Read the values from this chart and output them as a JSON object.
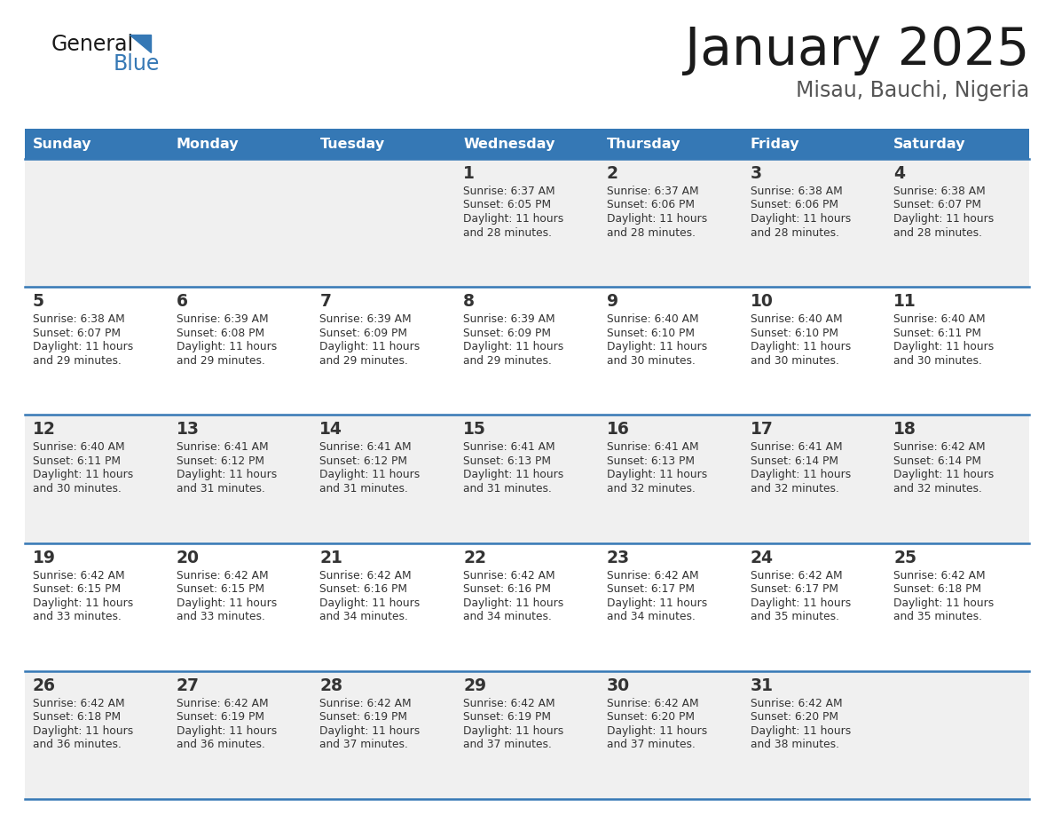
{
  "title": "January 2025",
  "subtitle": "Misau, Bauchi, Nigeria",
  "header_bg": "#3578b5",
  "header_text_color": "#ffffff",
  "cell_bg_odd": "#f0f0f0",
  "cell_bg_even": "#ffffff",
  "separator_color": "#3578b5",
  "text_color": "#333333",
  "days_of_week": [
    "Sunday",
    "Monday",
    "Tuesday",
    "Wednesday",
    "Thursday",
    "Friday",
    "Saturday"
  ],
  "calendar_data": [
    [
      {
        "day": "",
        "sunrise": "",
        "sunset": "",
        "daylight": ""
      },
      {
        "day": "",
        "sunrise": "",
        "sunset": "",
        "daylight": ""
      },
      {
        "day": "",
        "sunrise": "",
        "sunset": "",
        "daylight": ""
      },
      {
        "day": "1",
        "sunrise": "6:37 AM",
        "sunset": "6:05 PM",
        "daylight": "11 hours and 28 minutes."
      },
      {
        "day": "2",
        "sunrise": "6:37 AM",
        "sunset": "6:06 PM",
        "daylight": "11 hours and 28 minutes."
      },
      {
        "day": "3",
        "sunrise": "6:38 AM",
        "sunset": "6:06 PM",
        "daylight": "11 hours and 28 minutes."
      },
      {
        "day": "4",
        "sunrise": "6:38 AM",
        "sunset": "6:07 PM",
        "daylight": "11 hours and 28 minutes."
      }
    ],
    [
      {
        "day": "5",
        "sunrise": "6:38 AM",
        "sunset": "6:07 PM",
        "daylight": "11 hours and 29 minutes."
      },
      {
        "day": "6",
        "sunrise": "6:39 AM",
        "sunset": "6:08 PM",
        "daylight": "11 hours and 29 minutes."
      },
      {
        "day": "7",
        "sunrise": "6:39 AM",
        "sunset": "6:09 PM",
        "daylight": "11 hours and 29 minutes."
      },
      {
        "day": "8",
        "sunrise": "6:39 AM",
        "sunset": "6:09 PM",
        "daylight": "11 hours and 29 minutes."
      },
      {
        "day": "9",
        "sunrise": "6:40 AM",
        "sunset": "6:10 PM",
        "daylight": "11 hours and 30 minutes."
      },
      {
        "day": "10",
        "sunrise": "6:40 AM",
        "sunset": "6:10 PM",
        "daylight": "11 hours and 30 minutes."
      },
      {
        "day": "11",
        "sunrise": "6:40 AM",
        "sunset": "6:11 PM",
        "daylight": "11 hours and 30 minutes."
      }
    ],
    [
      {
        "day": "12",
        "sunrise": "6:40 AM",
        "sunset": "6:11 PM",
        "daylight": "11 hours and 30 minutes."
      },
      {
        "day": "13",
        "sunrise": "6:41 AM",
        "sunset": "6:12 PM",
        "daylight": "11 hours and 31 minutes."
      },
      {
        "day": "14",
        "sunrise": "6:41 AM",
        "sunset": "6:12 PM",
        "daylight": "11 hours and 31 minutes."
      },
      {
        "day": "15",
        "sunrise": "6:41 AM",
        "sunset": "6:13 PM",
        "daylight": "11 hours and 31 minutes."
      },
      {
        "day": "16",
        "sunrise": "6:41 AM",
        "sunset": "6:13 PM",
        "daylight": "11 hours and 32 minutes."
      },
      {
        "day": "17",
        "sunrise": "6:41 AM",
        "sunset": "6:14 PM",
        "daylight": "11 hours and 32 minutes."
      },
      {
        "day": "18",
        "sunrise": "6:42 AM",
        "sunset": "6:14 PM",
        "daylight": "11 hours and 32 minutes."
      }
    ],
    [
      {
        "day": "19",
        "sunrise": "6:42 AM",
        "sunset": "6:15 PM",
        "daylight": "11 hours and 33 minutes."
      },
      {
        "day": "20",
        "sunrise": "6:42 AM",
        "sunset": "6:15 PM",
        "daylight": "11 hours and 33 minutes."
      },
      {
        "day": "21",
        "sunrise": "6:42 AM",
        "sunset": "6:16 PM",
        "daylight": "11 hours and 34 minutes."
      },
      {
        "day": "22",
        "sunrise": "6:42 AM",
        "sunset": "6:16 PM",
        "daylight": "11 hours and 34 minutes."
      },
      {
        "day": "23",
        "sunrise": "6:42 AM",
        "sunset": "6:17 PM",
        "daylight": "11 hours and 34 minutes."
      },
      {
        "day": "24",
        "sunrise": "6:42 AM",
        "sunset": "6:17 PM",
        "daylight": "11 hours and 35 minutes."
      },
      {
        "day": "25",
        "sunrise": "6:42 AM",
        "sunset": "6:18 PM",
        "daylight": "11 hours and 35 minutes."
      }
    ],
    [
      {
        "day": "26",
        "sunrise": "6:42 AM",
        "sunset": "6:18 PM",
        "daylight": "11 hours and 36 minutes."
      },
      {
        "day": "27",
        "sunrise": "6:42 AM",
        "sunset": "6:19 PM",
        "daylight": "11 hours and 36 minutes."
      },
      {
        "day": "28",
        "sunrise": "6:42 AM",
        "sunset": "6:19 PM",
        "daylight": "11 hours and 37 minutes."
      },
      {
        "day": "29",
        "sunrise": "6:42 AM",
        "sunset": "6:19 PM",
        "daylight": "11 hours and 37 minutes."
      },
      {
        "day": "30",
        "sunrise": "6:42 AM",
        "sunset": "6:20 PM",
        "daylight": "11 hours and 37 minutes."
      },
      {
        "day": "31",
        "sunrise": "6:42 AM",
        "sunset": "6:20 PM",
        "daylight": "11 hours and 38 minutes."
      },
      {
        "day": "",
        "sunrise": "",
        "sunset": "",
        "daylight": ""
      }
    ]
  ]
}
